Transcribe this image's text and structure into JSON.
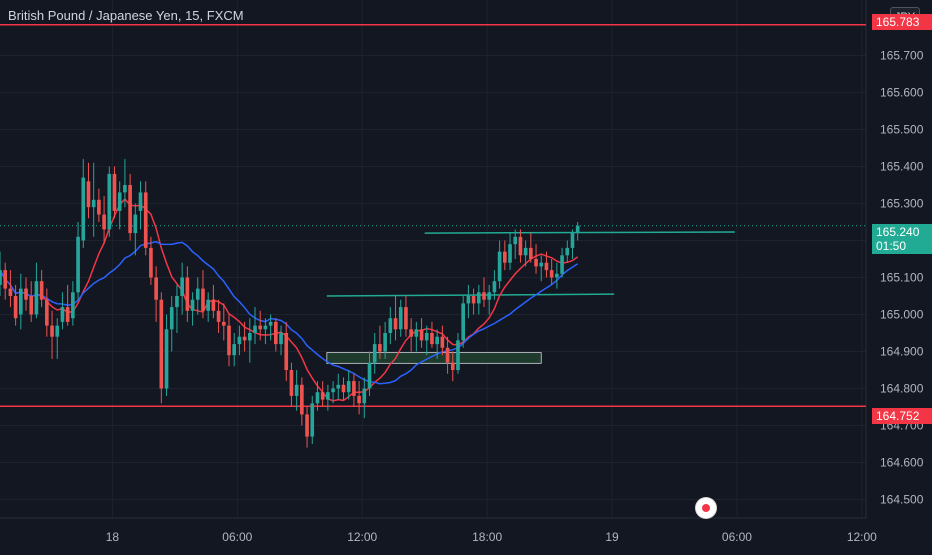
{
  "header": {
    "title": "British Pound / Japanese Yen, 15, FXCM"
  },
  "axis": {
    "currency_label": "JPY"
  },
  "price_tags": {
    "top_level_text": "165.783",
    "current_price": "165.240",
    "countdown": "01:50",
    "lower_level": "164.752"
  },
  "colors": {
    "background": "#131722",
    "grid": "#1e222d",
    "up_candle": "#26a69a",
    "down_candle": "#ef5350",
    "fast_ma": "#f23645",
    "slow_ma": "#2962ff",
    "horizontal_line": "#f23645",
    "trend_line": "#22ab94",
    "zone_fill": "#1f3b2d"
  },
  "icons": {
    "alert": "alert-target-icon"
  },
  "chart_data": {
    "type": "candlestick",
    "title": "British Pound / Japanese Yen, 15, FXCM",
    "ylabel": "JPY",
    "ylim": [
      164.45,
      165.85
    ],
    "y_ticks": [
      165.7,
      165.6,
      165.5,
      165.4,
      165.3,
      165.2,
      165.1,
      165.0,
      164.9,
      164.8,
      164.7,
      164.6,
      164.5
    ],
    "y_tick_labels": [
      "165.700",
      "165.600",
      "165.500",
      "165.400",
      "165.300",
      "165.200",
      "165.100",
      "165.000",
      "164.900",
      "164.800",
      "164.700",
      "164.600",
      "164.500"
    ],
    "x_tick_labels": [
      "18",
      "06:00",
      "12:00",
      "18:00",
      "19",
      "06:00",
      "12:00"
    ],
    "x_ticks_hours": [
      0,
      6,
      12,
      18,
      24,
      30,
      36
    ],
    "x_range_hours": [
      -5.4,
      36.2
    ],
    "current_price": 165.24,
    "horizontal_levels": [
      165.783,
      164.752
    ],
    "trend_lines": [
      {
        "from": [
          15.0,
          165.22
        ],
        "to": [
          29.9,
          165.223
        ]
      },
      {
        "from": [
          10.3,
          165.05
        ],
        "to": [
          24.1,
          165.055
        ]
      }
    ],
    "zones": [
      {
        "x": [
          10.3,
          20.6
        ],
        "y": [
          164.868,
          164.897
        ]
      }
    ],
    "candles_hours_start": -5.4,
    "candle_interval_hours": 0.25,
    "candles": [
      [
        165.08,
        165.17,
        165.05,
        165.12
      ],
      [
        165.12,
        165.14,
        165.04,
        165.07
      ],
      [
        165.07,
        165.12,
        165.02,
        165.05
      ],
      [
        165.05,
        165.08,
        164.97,
        164.99
      ],
      [
        165.0,
        165.11,
        164.96,
        165.07
      ],
      [
        165.07,
        165.1,
        165.01,
        165.04
      ],
      [
        165.05,
        165.09,
        164.98,
        165.0
      ],
      [
        165.0,
        165.14,
        164.99,
        165.09
      ],
      [
        165.09,
        165.12,
        165.02,
        165.04
      ],
      [
        165.04,
        165.07,
        164.94,
        164.97
      ],
      [
        164.97,
        165.01,
        164.88,
        164.94
      ],
      [
        164.94,
        164.99,
        164.88,
        164.97
      ],
      [
        164.98,
        165.06,
        164.96,
        165.02
      ],
      [
        165.02,
        165.08,
        164.97,
        164.98
      ],
      [
        164.99,
        165.09,
        164.97,
        165.06
      ],
      [
        165.06,
        165.25,
        165.04,
        165.21
      ],
      [
        165.2,
        165.42,
        165.18,
        165.37
      ],
      [
        165.36,
        165.41,
        165.26,
        165.29
      ],
      [
        165.29,
        165.41,
        165.21,
        165.31
      ],
      [
        165.31,
        165.34,
        165.25,
        165.27
      ],
      [
        165.27,
        165.32,
        165.19,
        165.23
      ],
      [
        165.23,
        165.4,
        165.21,
        165.38
      ],
      [
        165.38,
        165.4,
        165.26,
        165.28
      ],
      [
        165.28,
        165.36,
        165.23,
        165.33
      ],
      [
        165.33,
        165.42,
        165.29,
        165.35
      ],
      [
        165.35,
        165.38,
        165.2,
        165.22
      ],
      [
        165.22,
        165.3,
        165.16,
        165.27
      ],
      [
        165.28,
        165.36,
        165.23,
        165.33
      ],
      [
        165.33,
        165.36,
        165.16,
        165.18
      ],
      [
        165.18,
        165.21,
        165.08,
        165.1
      ],
      [
        165.1,
        165.13,
        164.98,
        165.04
      ],
      [
        165.04,
        165.06,
        164.76,
        164.8
      ],
      [
        164.8,
        165.0,
        164.78,
        164.96
      ],
      [
        164.96,
        165.05,
        164.9,
        165.02
      ],
      [
        165.02,
        165.08,
        164.95,
        165.05
      ],
      [
        165.05,
        165.14,
        165.0,
        165.1
      ],
      [
        165.1,
        165.13,
        164.98,
        165.01
      ],
      [
        165.01,
        165.06,
        164.97,
        165.04
      ],
      [
        165.04,
        165.1,
        165.0,
        165.07
      ],
      [
        165.07,
        165.12,
        164.99,
        165.01
      ],
      [
        165.01,
        165.06,
        164.98,
        165.04
      ],
      [
        165.04,
        165.08,
        164.99,
        165.01
      ],
      [
        165.01,
        165.04,
        164.95,
        164.98
      ],
      [
        164.98,
        165.03,
        164.93,
        164.97
      ],
      [
        164.97,
        165.0,
        164.86,
        164.89
      ],
      [
        164.89,
        164.95,
        164.86,
        164.92
      ],
      [
        164.92,
        164.97,
        164.89,
        164.94
      ],
      [
        164.94,
        164.98,
        164.9,
        164.93
      ],
      [
        164.93,
        164.99,
        164.87,
        164.95
      ],
      [
        164.95,
        165.02,
        164.92,
        164.97
      ],
      [
        164.97,
        165.01,
        164.93,
        164.96
      ],
      [
        164.96,
        164.99,
        164.92,
        164.97
      ],
      [
        164.97,
        165.0,
        164.93,
        164.98
      ],
      [
        164.98,
        164.99,
        164.9,
        164.92
      ],
      [
        164.92,
        164.97,
        164.89,
        164.95
      ],
      [
        164.95,
        164.98,
        164.82,
        164.85
      ],
      [
        164.85,
        164.87,
        164.75,
        164.78
      ],
      [
        164.78,
        164.85,
        164.74,
        164.81
      ],
      [
        164.81,
        164.83,
        164.7,
        164.73
      ],
      [
        164.73,
        164.75,
        164.64,
        164.67
      ],
      [
        164.67,
        164.78,
        164.65,
        164.76
      ],
      [
        164.76,
        164.82,
        164.74,
        164.79
      ],
      [
        164.79,
        164.82,
        164.75,
        164.77
      ],
      [
        164.77,
        164.81,
        164.74,
        164.79
      ],
      [
        164.79,
        164.82,
        164.76,
        164.8
      ],
      [
        164.8,
        164.84,
        164.77,
        164.81
      ],
      [
        164.81,
        164.83,
        164.77,
        164.79
      ],
      [
        164.79,
        164.85,
        164.77,
        164.82
      ],
      [
        164.82,
        164.84,
        164.75,
        164.78
      ],
      [
        164.78,
        164.82,
        164.73,
        164.76
      ],
      [
        164.76,
        164.83,
        164.72,
        164.8
      ],
      [
        164.8,
        164.9,
        164.78,
        164.87
      ],
      [
        164.87,
        164.95,
        164.84,
        164.92
      ],
      [
        164.92,
        164.97,
        164.88,
        164.9
      ],
      [
        164.9,
        164.98,
        164.88,
        164.95
      ],
      [
        164.95,
        165.02,
        164.92,
        164.99
      ],
      [
        164.99,
        165.05,
        164.93,
        164.96
      ],
      [
        164.96,
        165.04,
        164.94,
        165.02
      ],
      [
        165.02,
        165.05,
        164.94,
        164.96
      ],
      [
        164.96,
        164.99,
        164.9,
        164.94
      ],
      [
        164.94,
        164.98,
        164.9,
        164.96
      ],
      [
        164.96,
        164.99,
        164.91,
        164.93
      ],
      [
        164.93,
        164.97,
        164.89,
        164.95
      ],
      [
        164.95,
        164.98,
        164.91,
        164.92
      ],
      [
        164.92,
        164.96,
        164.88,
        164.94
      ],
      [
        164.94,
        164.97,
        164.89,
        164.91
      ],
      [
        164.91,
        164.94,
        164.84,
        164.87
      ],
      [
        164.87,
        164.9,
        164.82,
        164.85
      ],
      [
        164.85,
        164.95,
        164.84,
        164.93
      ],
      [
        164.93,
        165.05,
        164.91,
        165.03
      ],
      [
        165.03,
        165.08,
        164.99,
        165.05
      ],
      [
        165.05,
        165.07,
        165.0,
        165.03
      ],
      [
        165.03,
        165.08,
        165.0,
        165.06
      ],
      [
        165.06,
        165.1,
        165.02,
        165.04
      ],
      [
        165.04,
        165.08,
        165.0,
        165.06
      ],
      [
        165.06,
        165.12,
        165.04,
        165.09
      ],
      [
        165.09,
        165.2,
        165.07,
        165.17
      ],
      [
        165.17,
        165.2,
        165.12,
        165.14
      ],
      [
        165.14,
        165.22,
        165.12,
        165.19
      ],
      [
        165.19,
        165.23,
        165.15,
        165.21
      ],
      [
        165.21,
        165.23,
        165.14,
        165.16
      ],
      [
        165.16,
        165.2,
        165.13,
        165.18
      ],
      [
        165.18,
        165.22,
        165.14,
        165.15
      ],
      [
        165.15,
        165.19,
        165.11,
        165.13
      ],
      [
        165.13,
        165.16,
        165.09,
        165.14
      ],
      [
        165.14,
        165.17,
        165.1,
        165.12
      ],
      [
        165.12,
        165.15,
        165.08,
        165.1
      ],
      [
        165.1,
        165.14,
        165.07,
        165.11
      ],
      [
        165.11,
        165.18,
        165.1,
        165.16
      ],
      [
        165.16,
        165.2,
        165.14,
        165.18
      ],
      [
        165.18,
        165.23,
        165.15,
        165.22
      ],
      [
        165.22,
        165.25,
        165.2,
        165.24
      ]
    ],
    "moving_averages": [
      {
        "name": "",
        "color": "#f23645",
        "period": 9
      },
      {
        "name": "",
        "color": "#2962ff",
        "period": 21
      }
    ]
  }
}
